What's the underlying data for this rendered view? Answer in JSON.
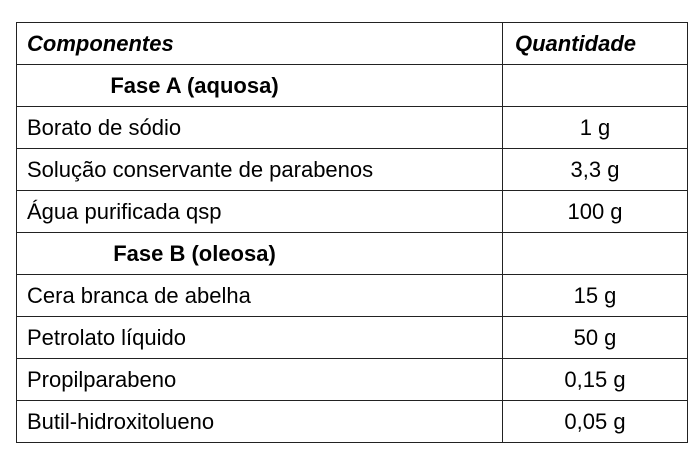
{
  "table": {
    "headers": {
      "component": "Componentes",
      "quantity": "Quantidade"
    },
    "rows": [
      {
        "type": "phase",
        "component": "Fase A (aquosa)",
        "quantity": ""
      },
      {
        "type": "item",
        "component": "Borato de sódio",
        "quantity": "1 g"
      },
      {
        "type": "item",
        "component": "Solução conservante de parabenos",
        "quantity": "3,3 g"
      },
      {
        "type": "item",
        "component": "Água purificada qsp",
        "quantity": "100 g"
      },
      {
        "type": "phase",
        "component": "Fase B (oleosa)",
        "quantity": ""
      },
      {
        "type": "item",
        "component": "Cera branca de abelha",
        "quantity": "15 g"
      },
      {
        "type": "item",
        "component": "Petrolato líquido",
        "quantity": "50 g"
      },
      {
        "type": "item",
        "component": "Propilparabeno",
        "quantity": "0,15 g"
      },
      {
        "type": "item",
        "component": "Butil-hidroxitolueno",
        "quantity": "0,05 g"
      }
    ]
  }
}
